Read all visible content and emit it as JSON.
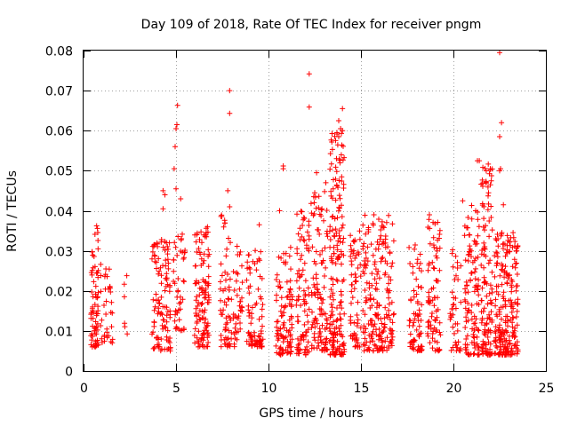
{
  "chart_data": {
    "type": "scatter",
    "title": "Day 109 of 2018, Rate Of TEC Index for receiver pngm",
    "xlabel": "GPS time / hours",
    "ylabel": "ROTI / TECUs",
    "xlim": [
      0,
      25
    ],
    "ylim": [
      0,
      0.08
    ],
    "xticks": [
      0,
      5,
      10,
      15,
      20,
      25
    ],
    "xtick_labels": [
      "0",
      "5",
      "10",
      "15",
      "20",
      "25"
    ],
    "yticks": [
      0,
      0.01,
      0.02,
      0.03,
      0.04,
      0.05,
      0.06,
      0.07,
      0.08
    ],
    "ytick_labels": [
      "0",
      "0.01",
      "0.02",
      "0.03",
      "0.04",
      "0.05",
      "0.06",
      "0.07",
      "0.08"
    ],
    "grid": true,
    "marker": "plus",
    "color": "#ff0000",
    "clusters": [
      {
        "x": [
          0.4,
          0.8
        ],
        "y": [
          0.006,
          0.037
        ],
        "n": 70
      },
      {
        "x": [
          0.9,
          1.6
        ],
        "y": [
          0.007,
          0.027
        ],
        "n": 35
      },
      {
        "x": [
          2.2,
          2.4
        ],
        "y": [
          0.009,
          0.031
        ],
        "n": 6
      },
      {
        "x": [
          3.7,
          4.7
        ],
        "y": [
          0.005,
          0.033
        ],
        "n": 110
      },
      {
        "x": [
          4.8,
          5.5
        ],
        "y": [
          0.01,
          0.035
        ],
        "n": 45
      },
      {
        "x": [
          6.0,
          6.8
        ],
        "y": [
          0.006,
          0.036
        ],
        "n": 120
      },
      {
        "x": [
          7.4,
          8.0
        ],
        "y": [
          0.006,
          0.04
        ],
        "n": 60
      },
      {
        "x": [
          8.1,
          8.6
        ],
        "y": [
          0.006,
          0.032
        ],
        "n": 40
      },
      {
        "x": [
          8.8,
          9.7
        ],
        "y": [
          0.006,
          0.031
        ],
        "n": 80
      },
      {
        "x": [
          10.4,
          11.3
        ],
        "y": [
          0.004,
          0.031
        ],
        "n": 100
      },
      {
        "x": [
          11.5,
          12.2
        ],
        "y": [
          0.004,
          0.04
        ],
        "n": 90
      },
      {
        "x": [
          12.3,
          13.2
        ],
        "y": [
          0.005,
          0.045
        ],
        "n": 110
      },
      {
        "x": [
          13.3,
          14.1
        ],
        "y": [
          0.004,
          0.06
        ],
        "n": 180
      },
      {
        "x": [
          14.4,
          15.0
        ],
        "y": [
          0.006,
          0.035
        ],
        "n": 60
      },
      {
        "x": [
          15.1,
          16.8
        ],
        "y": [
          0.005,
          0.039
        ],
        "n": 200
      },
      {
        "x": [
          17.6,
          18.3
        ],
        "y": [
          0.005,
          0.032
        ],
        "n": 70
      },
      {
        "x": [
          18.6,
          19.3
        ],
        "y": [
          0.005,
          0.039
        ],
        "n": 80
      },
      {
        "x": [
          19.8,
          20.4
        ],
        "y": [
          0.005,
          0.031
        ],
        "n": 40
      },
      {
        "x": [
          20.6,
          21.4
        ],
        "y": [
          0.004,
          0.042
        ],
        "n": 110
      },
      {
        "x": [
          21.5,
          22.1
        ],
        "y": [
          0.004,
          0.052
        ],
        "n": 120
      },
      {
        "x": [
          22.2,
          23.5
        ],
        "y": [
          0.004,
          0.035
        ],
        "n": 220
      }
    ],
    "outliers": [
      [
        4.3,
        0.045
      ],
      [
        4.4,
        0.044
      ],
      [
        4.3,
        0.0405
      ],
      [
        4.9,
        0.0505
      ],
      [
        4.95,
        0.056
      ],
      [
        5.0,
        0.0605
      ],
      [
        5.05,
        0.0615
      ],
      [
        5.08,
        0.0663
      ],
      [
        5.0,
        0.0455
      ],
      [
        5.25,
        0.043
      ],
      [
        7.9,
        0.07
      ],
      [
        7.9,
        0.0643
      ],
      [
        7.8,
        0.045
      ],
      [
        7.9,
        0.041
      ],
      [
        9.5,
        0.0365
      ],
      [
        10.8,
        0.0512
      ],
      [
        10.8,
        0.0505
      ],
      [
        10.6,
        0.04
      ],
      [
        12.2,
        0.0742
      ],
      [
        12.2,
        0.0659
      ],
      [
        12.6,
        0.0495
      ],
      [
        12.5,
        0.0445
      ],
      [
        13.1,
        0.047
      ],
      [
        13.8,
        0.0625
      ],
      [
        13.8,
        0.0585
      ],
      [
        14.0,
        0.0655
      ],
      [
        13.9,
        0.0605
      ],
      [
        14.0,
        0.06
      ],
      [
        13.7,
        0.0595
      ],
      [
        13.5,
        0.0455
      ],
      [
        15.7,
        0.039
      ],
      [
        18.7,
        0.039
      ],
      [
        20.5,
        0.0425
      ],
      [
        21.3,
        0.0525
      ],
      [
        21.4,
        0.0525
      ],
      [
        21.2,
        0.04
      ],
      [
        22.0,
        0.0465
      ],
      [
        21.9,
        0.0445
      ],
      [
        22.5,
        0.0795
      ],
      [
        22.6,
        0.062
      ],
      [
        22.5,
        0.0585
      ],
      [
        22.55,
        0.0505
      ],
      [
        22.5,
        0.05
      ],
      [
        22.7,
        0.0415
      ]
    ]
  }
}
